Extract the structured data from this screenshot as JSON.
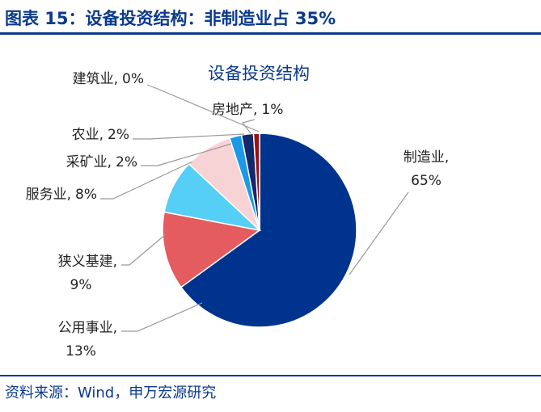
{
  "header": {
    "title": "图表 15：设备投资结构：非制造业占 35%"
  },
  "chart_data": {
    "type": "pie",
    "title": "设备投资结构",
    "categories": [
      "制造业,",
      "公用事业,",
      "狭义基建,",
      "服务业,",
      "采矿业,",
      "农业,",
      "房地产,",
      "建筑业,"
    ],
    "values": [
      65,
      13,
      9,
      8,
      2,
      2,
      1,
      0
    ],
    "value_labels": [
      "65%",
      "13%",
      "9%",
      "8%",
      "2%",
      "2%",
      "1%",
      "0%"
    ],
    "colors": [
      "#00338d",
      "#e45c5f",
      "#55cff5",
      "#f8d3d6",
      "#1a9ae6",
      "#14286e",
      "#9b1010",
      "#888888"
    ]
  },
  "footer": {
    "source": "资料来源：Wind，申万宏源研究"
  }
}
